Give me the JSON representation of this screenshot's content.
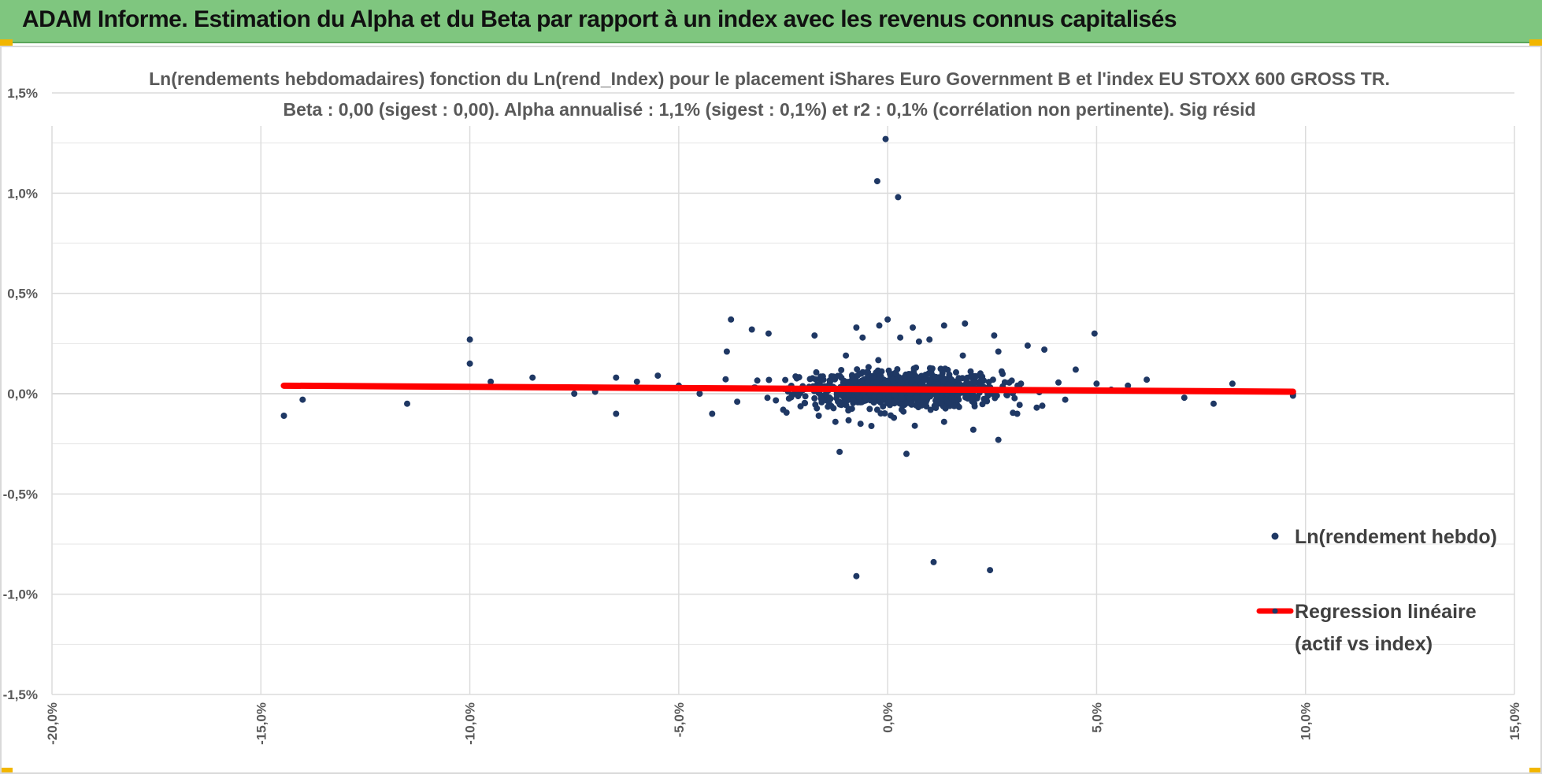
{
  "banner": {
    "title": "ADAM Informe. Estimation du Alpha et du Beta par rapport à un index avec les revenus connus capitalisés"
  },
  "colors": {
    "banner_bg": "#7fc67f",
    "corner": "#f2b600",
    "points": "#1f3864",
    "regression": "#ff0000",
    "grid": "#d9d9d9",
    "text": "#595959"
  },
  "chart_data": {
    "type": "scatter",
    "title": [
      "Ln(rendements hebdomadaires) fonction du Ln(rend_Index) pour le placement iShares Euro Government B et l'index EU STOXX 600 GROSS TR.",
      "Beta : 0,00 (sigest : 0,00).  Alpha annualisé : 1,1% (sigest : 0,1%) et r2 : 0,1% (corrélation non pertinente). Sig résid"
    ],
    "xlim": [
      -0.2,
      0.15
    ],
    "ylim": [
      -0.015,
      0.015
    ],
    "x_ticks": [
      -0.2,
      -0.15,
      -0.1,
      -0.05,
      0.0,
      0.05,
      0.1,
      0.15
    ],
    "x_tick_labels": [
      "-20,0%",
      "-15,0%",
      "-10,0%",
      "-5,0%",
      "0,0%",
      "5,0%",
      "10,0%",
      "15,0%"
    ],
    "y_ticks": [
      0.015,
      0.01,
      0.005,
      0.0,
      -0.005,
      -0.01,
      -0.015
    ],
    "y_tick_labels": [
      "1,5%",
      "1,0%",
      "0,5%",
      "0,0%",
      "-0,5%",
      "-1,0%",
      "-1,5%"
    ],
    "grid": true,
    "legend_position": "right",
    "series": [
      {
        "name": "Ln(rendement hebdo)",
        "kind": "scatter",
        "color": "#1f3864",
        "points": [
          [
            -0.0005,
            0.0127
          ],
          [
            -0.0025,
            0.0106
          ],
          [
            0.0025,
            0.0098
          ],
          [
            -0.0075,
            -0.0091
          ],
          [
            0.011,
            -0.0084
          ],
          [
            0.0245,
            -0.0088
          ],
          [
            -0.0115,
            -0.0029
          ],
          [
            0.0045,
            -0.003
          ],
          [
            0.0265,
            -0.0023
          ],
          [
            -0.1445,
            -0.0011
          ],
          [
            -0.14,
            -0.0003
          ],
          [
            -0.115,
            -0.0005
          ],
          [
            -0.1,
            0.0027
          ],
          [
            -0.1,
            0.0015
          ],
          [
            -0.095,
            0.0006
          ],
          [
            -0.085,
            0.0008
          ],
          [
            -0.075,
            0.0
          ],
          [
            -0.07,
            0.0001
          ],
          [
            -0.065,
            0.0008
          ],
          [
            -0.065,
            -0.001
          ],
          [
            -0.06,
            0.0006
          ],
          [
            -0.055,
            0.0009
          ],
          [
            -0.05,
            0.0004
          ],
          [
            -0.045,
            0.0
          ],
          [
            -0.0375,
            0.0037
          ],
          [
            -0.0385,
            0.0021
          ],
          [
            -0.0325,
            0.0032
          ],
          [
            -0.0285,
            0.003
          ],
          [
            -0.0175,
            0.0029
          ],
          [
            -0.01,
            0.0019
          ],
          [
            -0.006,
            0.0028
          ],
          [
            -0.0075,
            0.0033
          ],
          [
            -0.002,
            0.0034
          ],
          [
            0.0,
            0.0037
          ],
          [
            0.003,
            0.0028
          ],
          [
            0.006,
            0.0033
          ],
          [
            0.0075,
            0.0026
          ],
          [
            0.01,
            0.0027
          ],
          [
            0.0135,
            0.0034
          ],
          [
            0.0185,
            0.0035
          ],
          [
            0.018,
            0.0019
          ],
          [
            0.0255,
            0.0029
          ],
          [
            0.0265,
            0.0021
          ],
          [
            0.0335,
            0.0024
          ],
          [
            0.0375,
            0.0022
          ],
          [
            0.0495,
            0.003
          ],
          [
            0.045,
            0.0012
          ],
          [
            0.05,
            0.0005
          ],
          [
            0.062,
            0.0007
          ],
          [
            0.071,
            -0.0002
          ],
          [
            0.078,
            -0.0005
          ],
          [
            0.0825,
            0.0005
          ],
          [
            0.097,
            0.0
          ],
          [
            0.097,
            -0.0001
          ],
          [
            0.0575,
            0.0004
          ],
          [
            0.0535,
            0.0002
          ],
          [
            -0.0165,
            -0.0011
          ],
          [
            -0.0125,
            -0.0014
          ],
          [
            -0.0065,
            -0.0015
          ],
          [
            0.0015,
            -0.0012
          ],
          [
            0.0065,
            -0.0016
          ],
          [
            0.0135,
            -0.0014
          ],
          [
            0.0205,
            -0.0018
          ],
          [
            0.031,
            -0.001
          ],
          [
            0.037,
            -0.0006
          ],
          [
            0.0425,
            -0.0003
          ],
          [
            -0.036,
            -0.0004
          ],
          [
            -0.042,
            -0.001
          ],
          [
            -0.025,
            -0.0008
          ]
        ]
      },
      {
        "name": "Regression linéaire\n(actif vs index)",
        "kind": "line",
        "color": "#ff0000",
        "points": [
          [
            -0.1445,
            0.0004
          ],
          [
            0.097,
            0.0001
          ]
        ]
      }
    ],
    "legend": [
      {
        "label": "Ln(rendement hebdo)",
        "marker": "dot"
      },
      {
        "label_lines": [
          "Regression linéaire",
          "(actif vs index)"
        ],
        "marker": "line"
      }
    ]
  }
}
